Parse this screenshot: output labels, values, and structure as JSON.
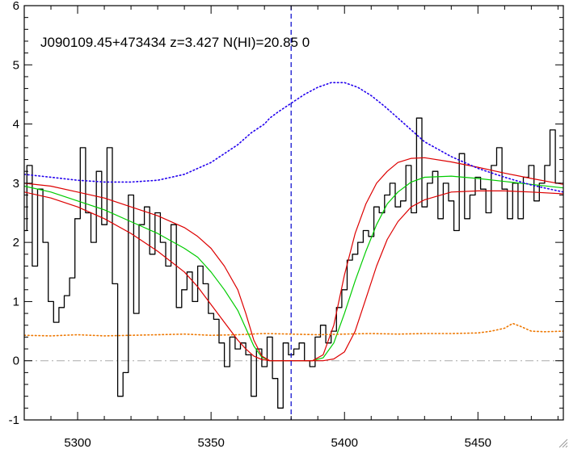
{
  "chart_data": {
    "type": "line",
    "title": "J090109.45+473434 z=3.427 N(HI)=20.85 0",
    "xlabel": "",
    "ylabel": "",
    "xlim": [
      5280,
      5482
    ],
    "ylim": [
      -1,
      6
    ],
    "xticks": [
      5300,
      5350,
      5400,
      5450
    ],
    "yticks": [
      -1,
      0,
      1,
      2,
      3,
      4,
      5,
      6
    ],
    "grid": false,
    "zero_line": {
      "y": 0,
      "color": "#aaaaaa",
      "style": "dash-dot"
    },
    "vline": {
      "x": 5380,
      "color": "#0000cc",
      "style": "dashed"
    },
    "series": [
      {
        "key": "spectrum",
        "color": "#000000",
        "style": "step",
        "x": [
          5280,
          5282,
          5284,
          5286,
          5288,
          5290,
          5292,
          5294,
          5296,
          5298,
          5300,
          5302,
          5304,
          5306,
          5308,
          5310,
          5312,
          5314,
          5316,
          5318,
          5320,
          5322,
          5324,
          5326,
          5328,
          5330,
          5332,
          5334,
          5336,
          5338,
          5340,
          5342,
          5344,
          5346,
          5348,
          5350,
          5352,
          5354,
          5356,
          5358,
          5360,
          5362,
          5364,
          5366,
          5368,
          5370,
          5372,
          5374,
          5376,
          5378,
          5380,
          5382,
          5384,
          5386,
          5388,
          5390,
          5392,
          5394,
          5396,
          5398,
          5400,
          5402,
          5404,
          5406,
          5408,
          5410,
          5412,
          5414,
          5416,
          5418,
          5420,
          5422,
          5424,
          5426,
          5428,
          5430,
          5432,
          5434,
          5436,
          5438,
          5440,
          5442,
          5444,
          5446,
          5448,
          5450,
          5452,
          5454,
          5456,
          5458,
          5460,
          5462,
          5464,
          5466,
          5468,
          5470,
          5472,
          5474,
          5476,
          5478,
          5480
        ],
        "y": [
          2.2,
          3.3,
          1.6,
          2.9,
          2.0,
          1.0,
          0.65,
          0.9,
          1.1,
          1.4,
          2.4,
          3.6,
          2.5,
          2.0,
          3.2,
          2.3,
          3.6,
          1.3,
          -0.6,
          -0.2,
          2.8,
          0.8,
          2.3,
          2.6,
          1.8,
          2.5,
          2.0,
          1.6,
          2.3,
          0.9,
          1.2,
          1.5,
          1.0,
          1.6,
          1.3,
          0.8,
          0.7,
          0.3,
          -0.1,
          0.4,
          0.2,
          0.3,
          0.1,
          -0.6,
          0.2,
          -0.1,
          0.4,
          -0.3,
          -0.8,
          0.3,
          0.1,
          0.2,
          0.3,
          0.0,
          -0.1,
          0.4,
          0.6,
          0.3,
          0.5,
          0.9,
          1.2,
          1.7,
          1.8,
          2.0,
          2.2,
          2.1,
          2.6,
          2.5,
          2.8,
          3.0,
          2.6,
          2.7,
          3.3,
          2.5,
          4.1,
          2.6,
          3.0,
          3.2,
          2.4,
          3.0,
          2.7,
          2.2,
          3.5,
          2.4,
          2.8,
          3.1,
          2.9,
          2.5,
          3.3,
          3.6,
          2.9,
          2.4,
          3.0,
          2.4,
          3.1,
          3.3,
          2.7,
          3.0,
          3.3,
          3.9,
          3.0
        ]
      },
      {
        "key": "fit_best",
        "color": "#00cc00",
        "style": "solid",
        "x": [
          5280,
          5290,
          5300,
          5310,
          5320,
          5330,
          5340,
          5345,
          5350,
          5355,
          5360,
          5363,
          5366,
          5369,
          5372,
          5376,
          5380,
          5384,
          5388,
          5392,
          5396,
          5400,
          5404,
          5408,
          5412,
          5416,
          5420,
          5425,
          5430,
          5440,
          5450,
          5460,
          5470,
          5482
        ],
        "y": [
          2.95,
          2.85,
          2.7,
          2.55,
          2.35,
          2.15,
          1.9,
          1.75,
          1.5,
          1.2,
          0.85,
          0.55,
          0.25,
          0.06,
          0.0,
          0.0,
          0.0,
          0.0,
          0.0,
          0.05,
          0.3,
          0.8,
          1.35,
          1.85,
          2.3,
          2.65,
          2.85,
          3.02,
          3.1,
          3.12,
          3.08,
          3.03,
          2.98,
          2.92
        ]
      },
      {
        "key": "fit_upper",
        "color": "#dd0000",
        "style": "solid",
        "x": [
          5280,
          5290,
          5300,
          5310,
          5320,
          5330,
          5340,
          5345,
          5350,
          5355,
          5360,
          5363,
          5366,
          5369,
          5372,
          5376,
          5380,
          5384,
          5388,
          5392,
          5396,
          5400,
          5404,
          5408,
          5412,
          5416,
          5420,
          5425,
          5430,
          5440,
          5450,
          5460,
          5470,
          5482
        ],
        "y": [
          3.0,
          2.95,
          2.85,
          2.75,
          2.6,
          2.45,
          2.25,
          2.1,
          1.9,
          1.6,
          1.2,
          0.8,
          0.35,
          0.08,
          0.0,
          0.0,
          0.0,
          0.0,
          0.0,
          0.1,
          0.6,
          1.45,
          2.15,
          2.65,
          3.0,
          3.2,
          3.35,
          3.42,
          3.43,
          3.36,
          3.27,
          3.17,
          3.08,
          2.98
        ]
      },
      {
        "key": "fit_lower",
        "color": "#dd0000",
        "style": "solid",
        "x": [
          5280,
          5290,
          5300,
          5310,
          5320,
          5330,
          5340,
          5345,
          5350,
          5355,
          5360,
          5363,
          5366,
          5369,
          5372,
          5376,
          5380,
          5384,
          5388,
          5392,
          5396,
          5400,
          5404,
          5408,
          5412,
          5416,
          5420,
          5425,
          5430,
          5440,
          5450,
          5460,
          5470,
          5482
        ],
        "y": [
          2.85,
          2.75,
          2.6,
          2.4,
          2.15,
          1.85,
          1.5,
          1.25,
          0.95,
          0.65,
          0.35,
          0.2,
          0.08,
          0.02,
          0.0,
          0.0,
          0.0,
          0.0,
          0.0,
          0.0,
          0.03,
          0.15,
          0.5,
          1.05,
          1.6,
          2.05,
          2.35,
          2.6,
          2.72,
          2.85,
          2.87,
          2.87,
          2.85,
          2.82
        ]
      },
      {
        "key": "continuum",
        "color": "#2200ee",
        "style": "dotted",
        "x": [
          5280,
          5290,
          5300,
          5310,
          5320,
          5330,
          5340,
          5350,
          5360,
          5365,
          5370,
          5372,
          5375,
          5380,
          5385,
          5390,
          5395,
          5400,
          5405,
          5410,
          5415,
          5420,
          5425,
          5430,
          5440,
          5450,
          5460,
          5470,
          5482
        ],
        "y": [
          3.15,
          3.1,
          3.05,
          3.02,
          3.02,
          3.05,
          3.15,
          3.35,
          3.65,
          3.85,
          4.0,
          4.1,
          4.2,
          4.35,
          4.5,
          4.62,
          4.7,
          4.7,
          4.62,
          4.48,
          4.3,
          4.1,
          3.9,
          3.7,
          3.45,
          3.25,
          3.1,
          2.97,
          2.85
        ]
      },
      {
        "key": "error",
        "color": "#ee7700",
        "style": "dotted",
        "x": [
          5280,
          5290,
          5300,
          5310,
          5320,
          5330,
          5340,
          5350,
          5360,
          5370,
          5380,
          5390,
          5400,
          5410,
          5420,
          5430,
          5440,
          5450,
          5455,
          5460,
          5463,
          5466,
          5470,
          5475,
          5482
        ],
        "y": [
          0.43,
          0.42,
          0.44,
          0.42,
          0.43,
          0.44,
          0.45,
          0.43,
          0.44,
          0.46,
          0.45,
          0.44,
          0.45,
          0.46,
          0.45,
          0.46,
          0.46,
          0.47,
          0.5,
          0.55,
          0.63,
          0.58,
          0.5,
          0.49,
          0.5
        ]
      }
    ]
  }
}
